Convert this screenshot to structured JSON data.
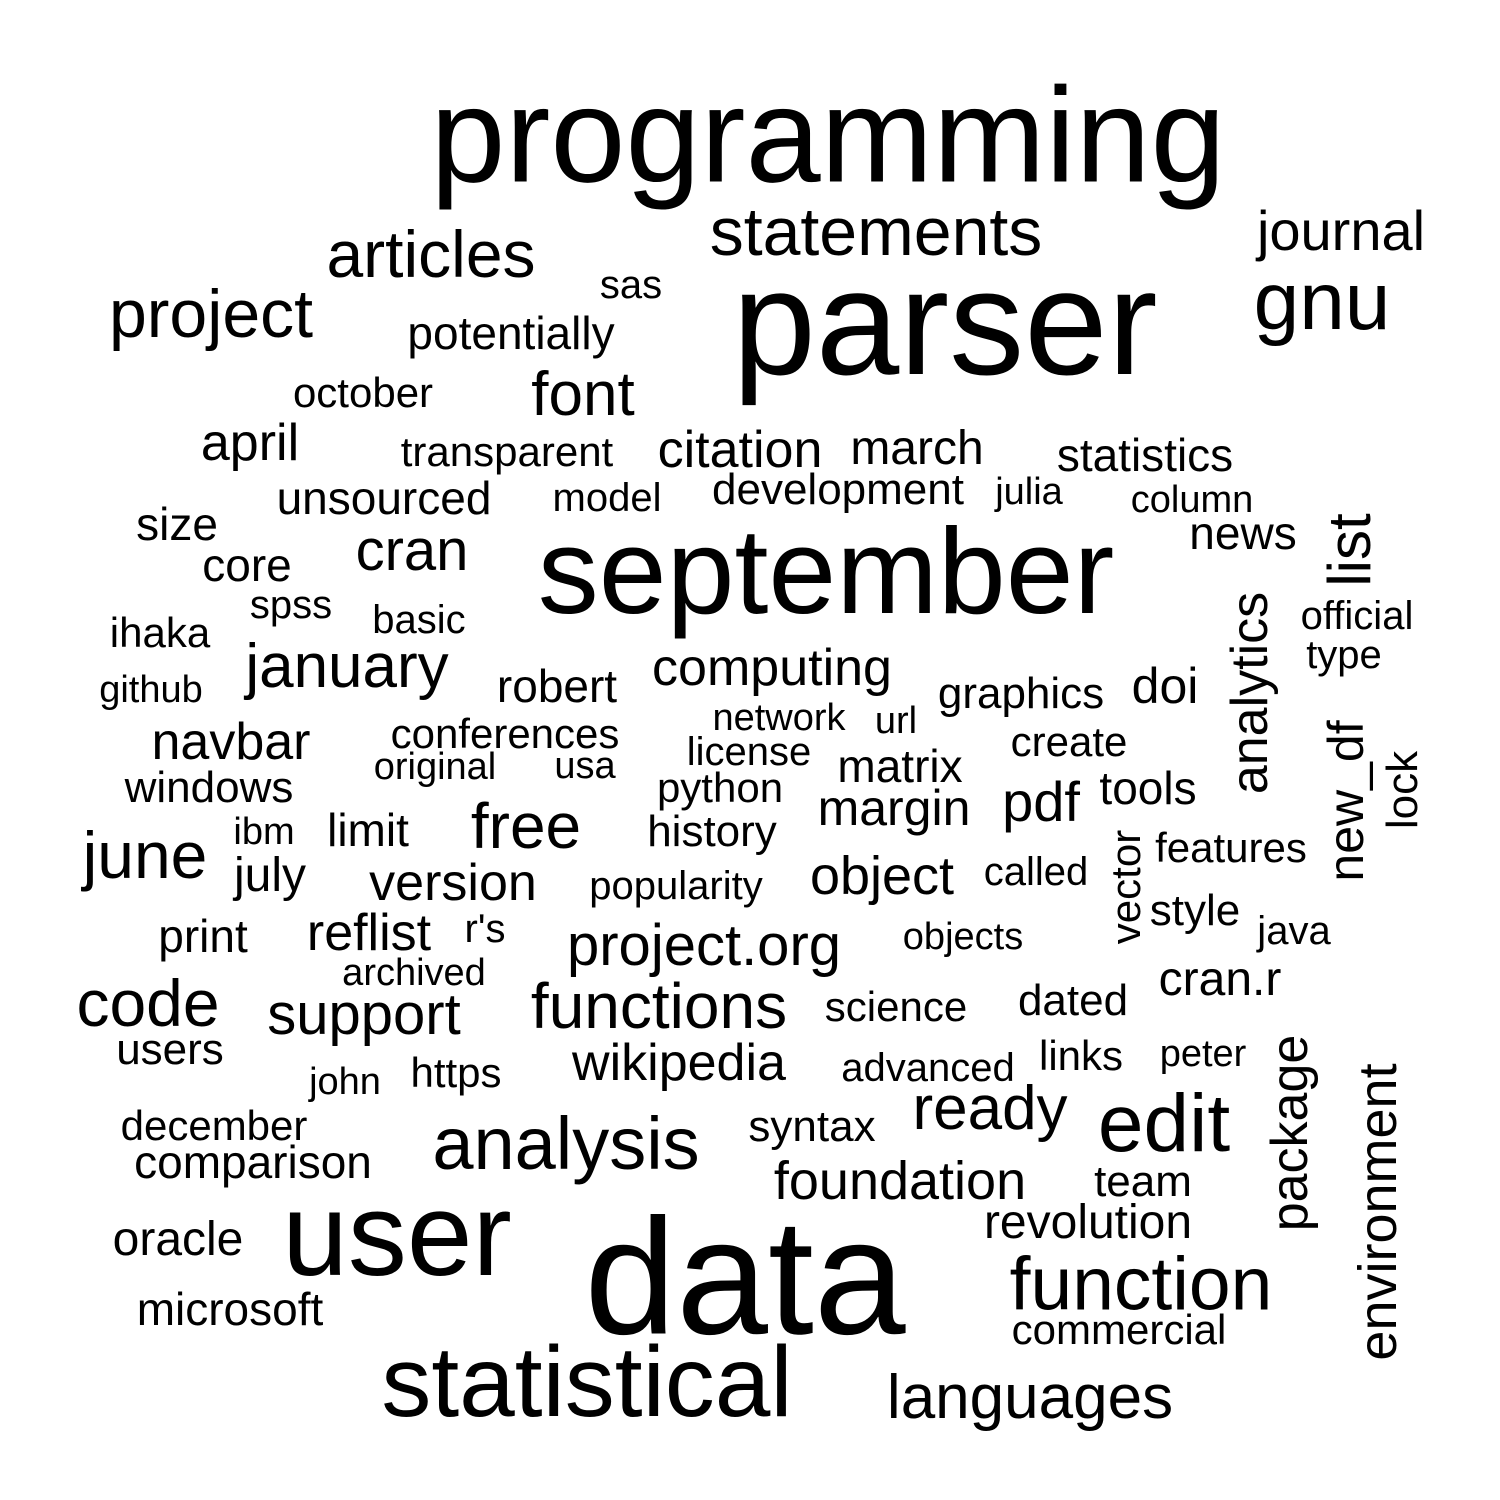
{
  "colors": {
    "background": "#ffffff",
    "text": "#000000"
  },
  "words": [
    "programming",
    "parser",
    "data",
    "september",
    "user",
    "statistical",
    "analysis",
    "edit",
    "function",
    "statements",
    "articles",
    "project",
    "gnu",
    "journal",
    "font",
    "sas",
    "potentially",
    "october",
    "april",
    "transparent",
    "citation",
    "march",
    "statistics",
    "unsourced",
    "model",
    "development",
    "julia",
    "column",
    "news",
    "list",
    "size",
    "core",
    "cran",
    "spss",
    "basic",
    "ihaka",
    "analytics",
    "official",
    "type",
    "january",
    "github",
    "robert",
    "computing",
    "graphics",
    "doi",
    "network",
    "url",
    "new_df",
    "navbar",
    "conferences",
    "license",
    "create",
    "windows",
    "original",
    "usa",
    "matrix",
    "lock",
    "python",
    "margin",
    "pdf",
    "tools",
    "june",
    "ibm",
    "limit",
    "free",
    "history",
    "features",
    "july",
    "version",
    "popularity",
    "object",
    "called",
    "vector",
    "print",
    "reflist",
    "r's",
    "project.org",
    "objects",
    "style",
    "java",
    "archived",
    "code",
    "support",
    "functions",
    "science",
    "dated",
    "cran.r",
    "users",
    "wikipedia",
    "links",
    "peter",
    "package",
    "environment",
    "john",
    "https",
    "advanced",
    "ready",
    "december",
    "syntax",
    "comparison",
    "foundation",
    "team",
    "revolution",
    "oracle",
    "microsoft",
    "commercial",
    "languages"
  ]
}
